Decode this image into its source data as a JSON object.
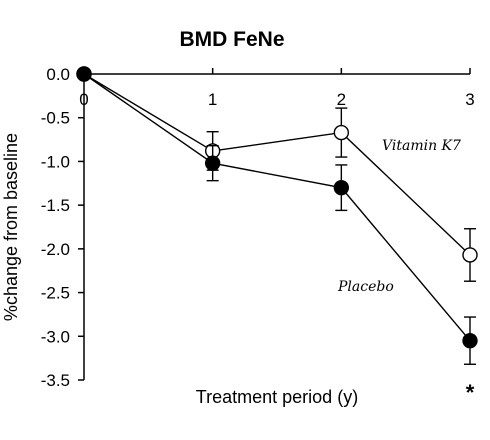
{
  "chart_data": {
    "type": "line",
    "title": "BMD FeNe",
    "xlabel": "Treatment period (y)",
    "ylabel": "%change from baseline",
    "x": [
      0,
      1,
      2,
      3
    ],
    "x_ticks": [
      "0",
      "1",
      "2",
      "3"
    ],
    "xlim": [
      0,
      3
    ],
    "ylim": [
      -3.5,
      0
    ],
    "y_ticks": [
      "0.0",
      "-0.5",
      "-1.0",
      "-1.5",
      "-2.0",
      "-2.5",
      "-3.0",
      "-3.5"
    ],
    "y_tick_values": [
      0,
      -0.5,
      -1.0,
      -1.5,
      -2.0,
      -2.5,
      -3.0,
      -3.5
    ],
    "grid": false,
    "series": [
      {
        "name": "Vitamin K7",
        "marker": "open-circle",
        "values": [
          0,
          -0.88,
          -0.67,
          -2.07
        ],
        "error": [
          0,
          0.22,
          0.28,
          0.3
        ]
      },
      {
        "name": "Placebo",
        "marker": "filled-circle",
        "values": [
          0,
          -1.02,
          -1.3,
          -3.05
        ],
        "error": [
          0,
          0.2,
          0.26,
          0.27
        ]
      }
    ],
    "annotations": [
      "*"
    ],
    "colors": {
      "line": "#000000",
      "background": "#ffffff"
    }
  }
}
